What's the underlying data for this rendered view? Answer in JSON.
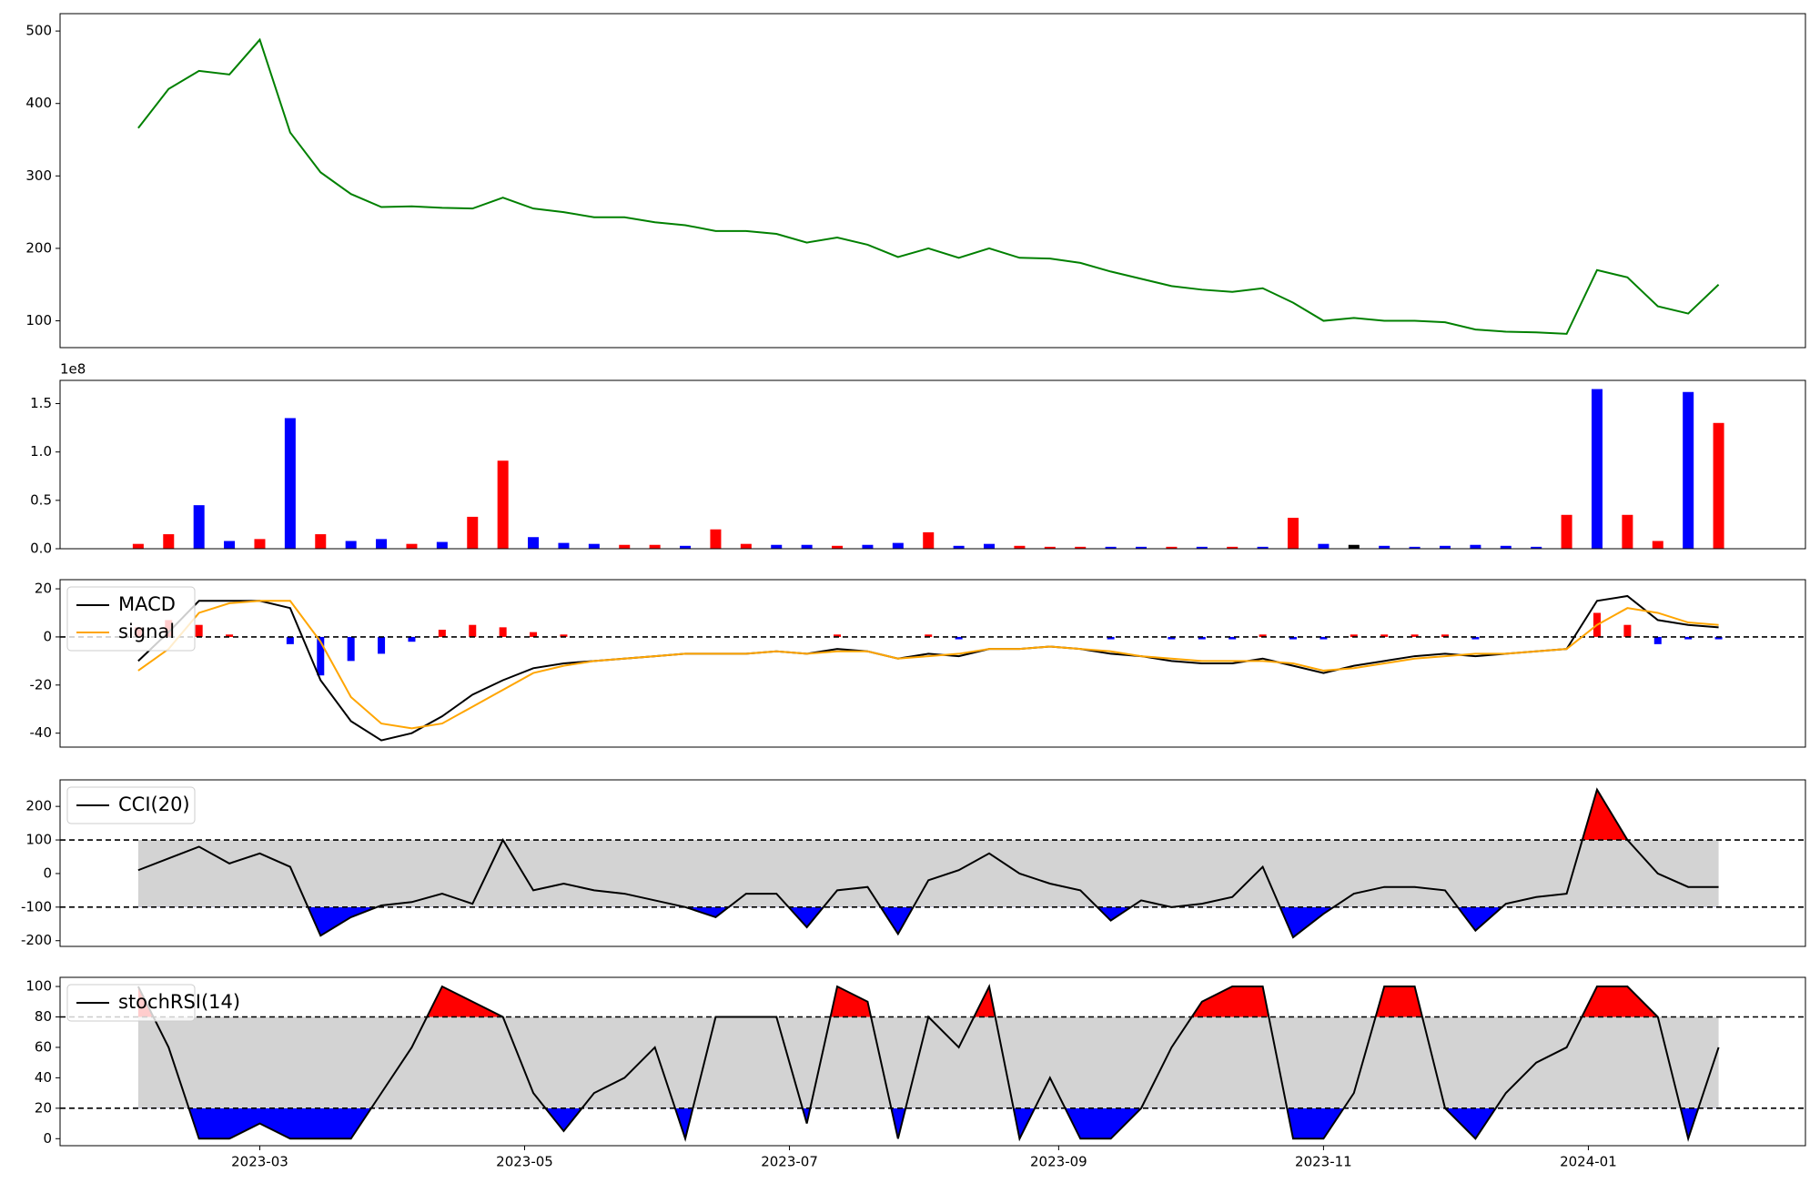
{
  "chart_data": {
    "type": "panels",
    "x": [
      19389,
      19396,
      19403,
      19410,
      19417,
      19424,
      19431,
      19438,
      19445,
      19452,
      19459,
      19466,
      19473,
      19480,
      19487,
      19494,
      19501,
      19508,
      19515,
      19522,
      19529,
      19536,
      19543,
      19550,
      19557,
      19564,
      19571,
      19578,
      19585,
      19592,
      19599,
      19606,
      19613,
      19620,
      19627,
      19634,
      19641,
      19648,
      19655,
      19662,
      19669,
      19676,
      19683,
      19690,
      19697,
      19704,
      19711,
      19718,
      19725,
      19732,
      19739,
      19746,
      19753
    ],
    "xlim": [
      19371,
      19773
    ],
    "xticks": [
      {
        "value": 19417,
        "label": "2023-03"
      },
      {
        "value": 19478,
        "label": "2023-05"
      },
      {
        "value": 19539,
        "label": "2023-07"
      },
      {
        "value": 19601,
        "label": "2023-09"
      },
      {
        "value": 19662,
        "label": "2023-11"
      },
      {
        "value": 19723,
        "label": "2024-01"
      }
    ],
    "panels": [
      {
        "type": "line",
        "ylim": [
          63,
          524
        ],
        "yticks": [
          100,
          200,
          300,
          400,
          500
        ],
        "series": [
          {
            "color": "green",
            "values": [
              366,
              420,
              445,
              440,
              488,
              360,
              305,
              275,
              257,
              258,
              256,
              255,
              270,
              255,
              250,
              243,
              243,
              236,
              232,
              224,
              224,
              220,
              208,
              215,
              205,
              188,
              200,
              187,
              200,
              187,
              186,
              180,
              168,
              158,
              148,
              143,
              140,
              145,
              125,
              100,
              104,
              100,
              100,
              98,
              88,
              85,
              84,
              82,
              170,
              160,
              120,
              110,
              150
            ]
          }
        ]
      },
      {
        "type": "bar",
        "ylim": [
          0,
          174000000
        ],
        "offset_label": "1e8",
        "yticks": [
          {
            "value": 0,
            "label": "0.0"
          },
          {
            "value": 50000000,
            "label": "0.5"
          },
          {
            "value": 100000000,
            "label": "1.0"
          },
          {
            "value": 150000000,
            "label": "1.5"
          }
        ],
        "values": [
          5000000,
          15000000,
          45000000,
          8000000,
          10000000,
          135000000,
          15000000,
          8000000,
          10000000,
          5000000,
          7000000,
          33000000,
          91000000,
          12000000,
          6000000,
          5000000,
          4000000,
          4000000,
          3000000,
          20000000,
          5000000,
          4000000,
          4000000,
          3000000,
          4000000,
          6000000,
          17000000,
          3000000,
          5000000,
          3000000,
          2000000,
          2000000,
          2000000,
          2000000,
          2000000,
          2000000,
          2000000,
          2000000,
          32000000,
          5000000,
          4000000,
          3000000,
          2000000,
          3000000,
          4000000,
          3000000,
          2000000,
          35000000,
          165000000,
          35000000,
          8000000,
          162000000,
          130000000
        ],
        "colors": [
          "red",
          "red",
          "blue",
          "blue",
          "red",
          "blue",
          "red",
          "blue",
          "blue",
          "red",
          "blue",
          "red",
          "red",
          "blue",
          "blue",
          "blue",
          "red",
          "red",
          "blue",
          "red",
          "red",
          "blue",
          "blue",
          "red",
          "blue",
          "blue",
          "red",
          "blue",
          "blue",
          "red",
          "red",
          "red",
          "blue",
          "blue",
          "red",
          "blue",
          "red",
          "blue",
          "red",
          "blue",
          "black",
          "blue",
          "blue",
          "blue",
          "blue",
          "blue",
          "blue",
          "red",
          "blue",
          "red",
          "red",
          "blue",
          "red"
        ]
      },
      {
        "type": "macd",
        "ylim": [
          -45.8,
          23.8
        ],
        "yticks": [
          -40,
          -20,
          0,
          20
        ],
        "legend": "upper left",
        "reference_lines": [
          0
        ],
        "series": [
          {
            "name": "MACD",
            "color": "black",
            "values": [
              -10,
              2,
              15,
              15,
              15,
              12,
              -18,
              -35,
              -43,
              -40,
              -33,
              -24,
              -18,
              -13,
              -11,
              -10,
              -9,
              -8,
              -7,
              -7,
              -7,
              -6,
              -7,
              -5,
              -6,
              -9,
              -7,
              -8,
              -5,
              -5,
              -4,
              -5,
              -7,
              -8,
              -10,
              -11,
              -11,
              -9,
              -12,
              -15,
              -12,
              -10,
              -8,
              -7,
              -8,
              -7,
              -6,
              -5,
              15,
              17,
              7,
              5,
              4
            ]
          },
          {
            "name": "signal",
            "color": "orange",
            "values": [
              -14,
              -5,
              10,
              14,
              15,
              15,
              -2,
              -25,
              -36,
              -38,
              -36,
              -29,
              -22,
              -15,
              -12,
              -10,
              -9,
              -8,
              -7,
              -7,
              -7,
              -6,
              -7,
              -6,
              -6,
              -9,
              -8,
              -7,
              -5,
              -5,
              -4,
              -5,
              -6,
              -8,
              -9,
              -10,
              -10,
              -10,
              -11,
              -14,
              -13,
              -11,
              -9,
              -8,
              -7,
              -7,
              -6,
              -5,
              5,
              12,
              10,
              6,
              5
            ]
          }
        ],
        "histogram": {
          "up_color": "red",
          "down_color": "blue",
          "values": [
            4,
            7,
            5,
            1,
            0,
            -3,
            -16,
            -10,
            -7,
            -2,
            3,
            5,
            4,
            2,
            1,
            0,
            0,
            0,
            0,
            0,
            0,
            0,
            0,
            1,
            0,
            0,
            1,
            -1,
            0,
            0,
            0,
            0,
            -1,
            0,
            -1,
            -1,
            -1,
            1,
            -1,
            -1,
            1,
            1,
            1,
            1,
            -1,
            0,
            0,
            0,
            10,
            5,
            -3,
            -1,
            -1
          ]
        }
      },
      {
        "type": "band",
        "ylim": [
          -217,
          279
        ],
        "yticks": [
          -200,
          -100,
          0,
          100,
          200
        ],
        "legend": "upper left",
        "bands": [
          -100,
          100
        ],
        "band_colors": {
          "inside": "lightgray",
          "above": "red",
          "below": "blue"
        },
        "series": [
          {
            "name": "CCI(20)",
            "color": "black",
            "values": [
              10,
              45,
              80,
              30,
              60,
              20,
              -185,
              -130,
              -95,
              -85,
              -60,
              -90,
              100,
              -50,
              -30,
              -50,
              -60,
              -80,
              -100,
              -130,
              -60,
              -60,
              -160,
              -50,
              -40,
              -180,
              -20,
              10,
              60,
              0,
              -30,
              -50,
              -140,
              -80,
              -100,
              -90,
              -70,
              20,
              -190,
              -120,
              -60,
              -40,
              -40,
              -50,
              -170,
              -90,
              -70,
              -60,
              250,
              100,
              0,
              -40,
              -40
            ]
          }
        ]
      },
      {
        "type": "band",
        "ylim": [
          -4.6,
          106
        ],
        "yticks": [
          0,
          20,
          40,
          60,
          80,
          100
        ],
        "legend": "upper left",
        "bands": [
          20,
          80
        ],
        "band_colors": {
          "inside": "lightgray",
          "above": "red",
          "below": "blue"
        },
        "series": [
          {
            "name": "stochRSI(14)",
            "color": "black",
            "values": [
              100,
              60,
              0,
              0,
              10,
              0,
              0,
              0,
              30,
              60,
              100,
              90,
              80,
              30,
              5,
              30,
              40,
              60,
              0,
              80,
              80,
              80,
              10,
              100,
              90,
              0,
              80,
              60,
              100,
              0,
              40,
              0,
              0,
              20,
              60,
              90,
              100,
              100,
              0,
              0,
              30,
              100,
              100,
              20,
              0,
              30,
              50,
              60,
              100,
              100,
              80,
              0,
              60
            ]
          }
        ]
      }
    ]
  }
}
